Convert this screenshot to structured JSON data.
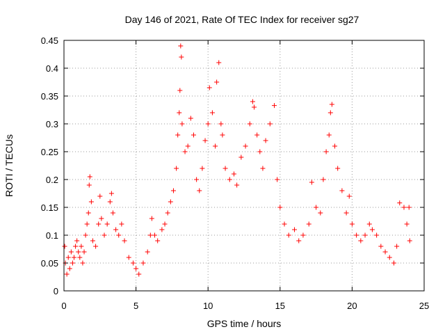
{
  "chart_data": {
    "type": "scatter",
    "title": "Day 146 of 2021, Rate Of TEC Index for receiver sg27",
    "xlabel": "GPS time / hours",
    "ylabel": "ROTI / TECUs",
    "xlim": [
      0,
      25
    ],
    "ylim": [
      0,
      0.45
    ],
    "xticks": [
      0,
      5,
      10,
      15,
      20,
      25
    ],
    "yticks": [
      0,
      0.05,
      0.1,
      0.15,
      0.2,
      0.25,
      0.3,
      0.35,
      0.4,
      0.45
    ],
    "xtick_labels": [
      "0",
      "5",
      "10",
      "15",
      "20",
      "25"
    ],
    "ytick_labels": [
      "0",
      "0.05",
      "0.1",
      "0.15",
      "0.2",
      "0.25",
      "0.3",
      "0.35",
      "0.4",
      "0.45"
    ],
    "grid": true,
    "legend": "none",
    "marker": "+",
    "color": "#ff0000",
    "series": [
      {
        "values": [
          [
            0.05,
            0.08
          ],
          [
            0.1,
            0.05
          ],
          [
            0.2,
            0.03
          ],
          [
            0.3,
            0.06
          ],
          [
            0.4,
            0.04
          ],
          [
            0.5,
            0.07
          ],
          [
            0.6,
            0.05
          ],
          [
            0.7,
            0.06
          ],
          [
            0.8,
            0.08
          ],
          [
            0.9,
            0.09
          ],
          [
            1.0,
            0.07
          ],
          [
            1.1,
            0.06
          ],
          [
            1.2,
            0.08
          ],
          [
            1.3,
            0.05
          ],
          [
            1.4,
            0.07
          ],
          [
            1.5,
            0.1
          ],
          [
            1.6,
            0.12
          ],
          [
            1.7,
            0.14
          ],
          [
            1.75,
            0.19
          ],
          [
            1.8,
            0.205
          ],
          [
            1.9,
            0.16
          ],
          [
            2.0,
            0.09
          ],
          [
            2.2,
            0.08
          ],
          [
            2.4,
            0.12
          ],
          [
            2.5,
            0.17
          ],
          [
            2.6,
            0.13
          ],
          [
            2.8,
            0.1
          ],
          [
            3.0,
            0.12
          ],
          [
            3.2,
            0.16
          ],
          [
            3.3,
            0.175
          ],
          [
            3.4,
            0.14
          ],
          [
            3.6,
            0.11
          ],
          [
            3.8,
            0.1
          ],
          [
            4.0,
            0.12
          ],
          [
            4.2,
            0.09
          ],
          [
            4.5,
            0.06
          ],
          [
            4.8,
            0.05
          ],
          [
            5.0,
            0.04
          ],
          [
            5.2,
            0.03
          ],
          [
            5.5,
            0.05
          ],
          [
            5.8,
            0.07
          ],
          [
            6.0,
            0.1
          ],
          [
            6.1,
            0.13
          ],
          [
            6.3,
            0.1
          ],
          [
            6.5,
            0.09
          ],
          [
            6.8,
            0.11
          ],
          [
            7.0,
            0.12
          ],
          [
            7.2,
            0.14
          ],
          [
            7.4,
            0.16
          ],
          [
            7.6,
            0.18
          ],
          [
            7.8,
            0.22
          ],
          [
            7.9,
            0.28
          ],
          [
            8.0,
            0.32
          ],
          [
            8.05,
            0.36
          ],
          [
            8.1,
            0.44
          ],
          [
            8.15,
            0.42
          ],
          [
            8.2,
            0.3
          ],
          [
            8.4,
            0.25
          ],
          [
            8.6,
            0.26
          ],
          [
            8.8,
            0.31
          ],
          [
            9.0,
            0.28
          ],
          [
            9.2,
            0.2
          ],
          [
            9.4,
            0.18
          ],
          [
            9.6,
            0.22
          ],
          [
            9.8,
            0.27
          ],
          [
            10.0,
            0.3
          ],
          [
            10.1,
            0.365
          ],
          [
            10.3,
            0.32
          ],
          [
            10.5,
            0.26
          ],
          [
            10.6,
            0.375
          ],
          [
            10.75,
            0.41
          ],
          [
            10.9,
            0.3
          ],
          [
            11.0,
            0.28
          ],
          [
            11.2,
            0.22
          ],
          [
            11.5,
            0.2
          ],
          [
            11.8,
            0.21
          ],
          [
            12.0,
            0.19
          ],
          [
            12.3,
            0.24
          ],
          [
            12.6,
            0.26
          ],
          [
            12.9,
            0.3
          ],
          [
            13.1,
            0.34
          ],
          [
            13.2,
            0.33
          ],
          [
            13.4,
            0.28
          ],
          [
            13.6,
            0.25
          ],
          [
            13.8,
            0.22
          ],
          [
            14.0,
            0.27
          ],
          [
            14.3,
            0.3
          ],
          [
            14.6,
            0.333
          ],
          [
            14.8,
            0.2
          ],
          [
            15.0,
            0.15
          ],
          [
            15.3,
            0.12
          ],
          [
            15.6,
            0.1
          ],
          [
            16.0,
            0.11
          ],
          [
            16.3,
            0.09
          ],
          [
            16.6,
            0.1
          ],
          [
            17.0,
            0.12
          ],
          [
            17.2,
            0.195
          ],
          [
            17.5,
            0.15
          ],
          [
            17.8,
            0.14
          ],
          [
            18.0,
            0.2
          ],
          [
            18.2,
            0.25
          ],
          [
            18.4,
            0.28
          ],
          [
            18.5,
            0.32
          ],
          [
            18.6,
            0.335
          ],
          [
            18.8,
            0.26
          ],
          [
            19.0,
            0.22
          ],
          [
            19.3,
            0.18
          ],
          [
            19.6,
            0.14
          ],
          [
            19.8,
            0.17
          ],
          [
            20.0,
            0.12
          ],
          [
            20.3,
            0.1
          ],
          [
            20.6,
            0.09
          ],
          [
            20.9,
            0.1
          ],
          [
            21.2,
            0.12
          ],
          [
            21.4,
            0.11
          ],
          [
            21.7,
            0.1
          ],
          [
            22.0,
            0.08
          ],
          [
            22.3,
            0.07
          ],
          [
            22.6,
            0.06
          ],
          [
            22.9,
            0.05
          ],
          [
            23.1,
            0.08
          ],
          [
            23.3,
            0.158
          ],
          [
            23.6,
            0.15
          ],
          [
            23.8,
            0.12
          ],
          [
            23.95,
            0.15
          ],
          [
            24.0,
            0.09
          ]
        ]
      }
    ]
  }
}
